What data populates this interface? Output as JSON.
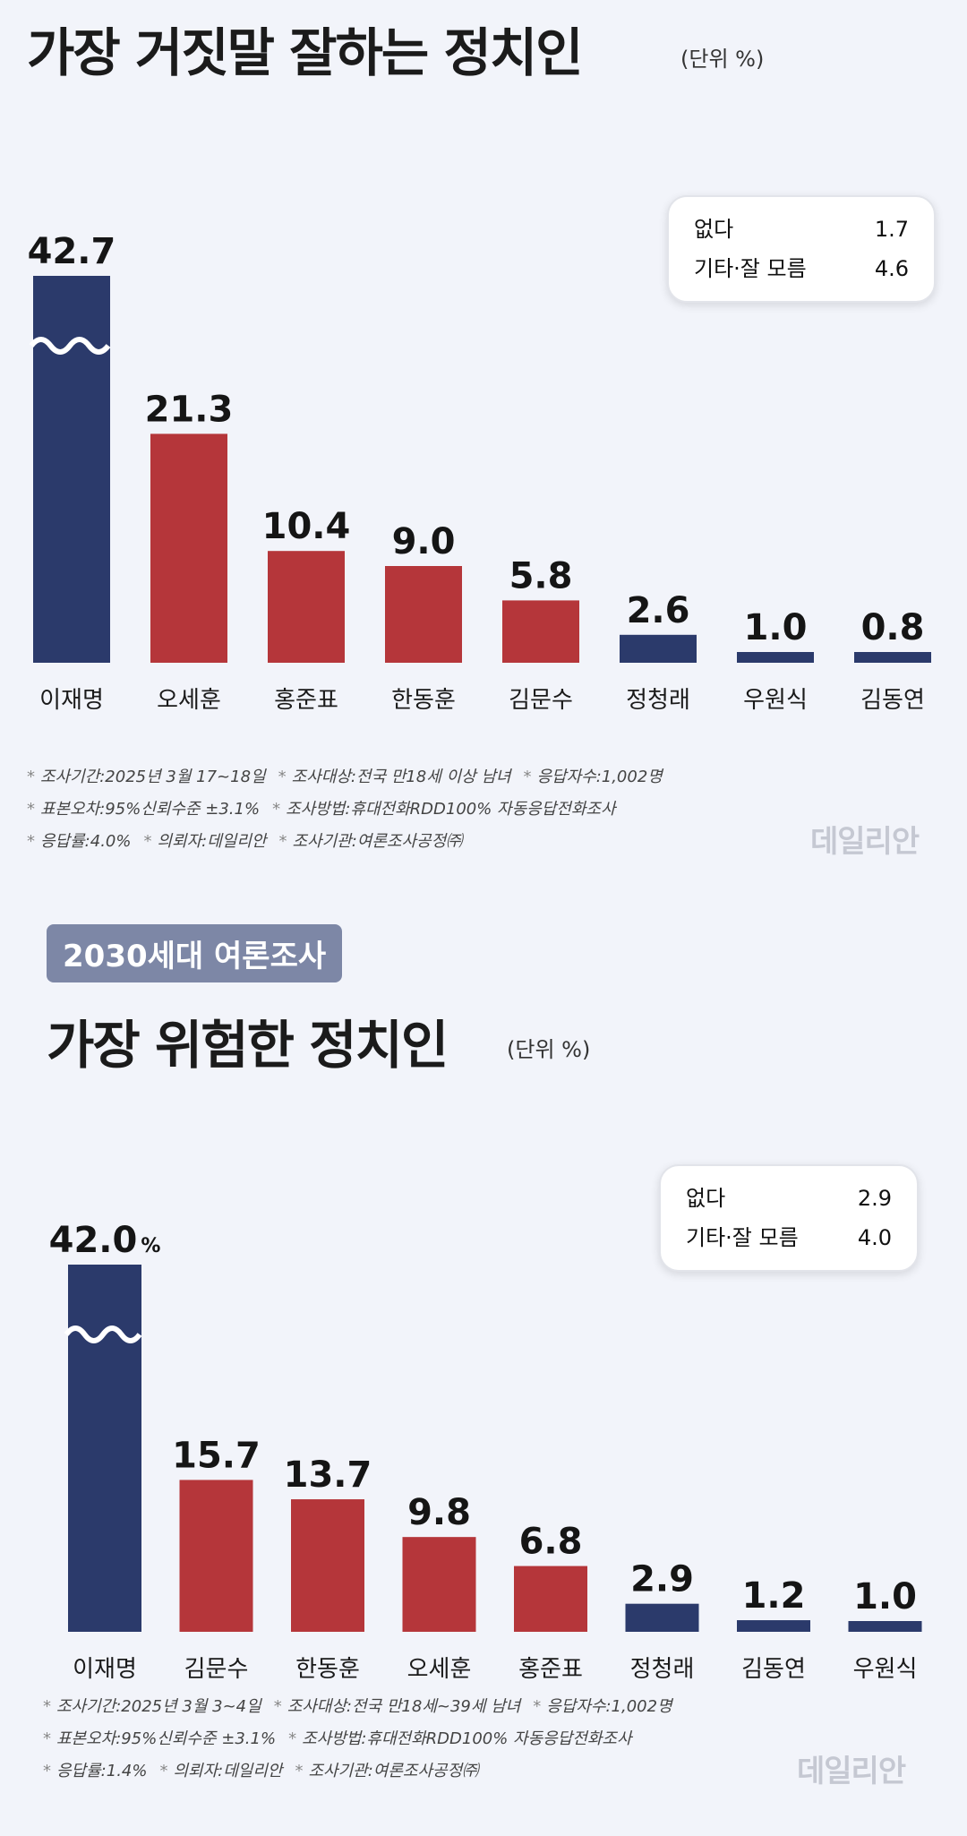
{
  "chart_data": [
    {
      "type": "bar",
      "title": "가장 거짓말 잘하는 정치인",
      "unit": "(단위 %)",
      "categories": [
        "이재명",
        "오세훈",
        "홍준표",
        "한동훈",
        "김문수",
        "정청래",
        "우원식",
        "김동연"
      ],
      "values": [
        42.7,
        21.3,
        10.4,
        9.0,
        5.8,
        2.6,
        1.0,
        0.8
      ],
      "labels": [
        "42.7",
        "21.3",
        "10.4",
        "9.0",
        "5.8",
        "2.6",
        "1.0",
        "0.8"
      ],
      "colors": [
        "#2b3a6b",
        "#b5363a",
        "#b5363a",
        "#b5363a",
        "#b5363a",
        "#2b3a6b",
        "#2b3a6b",
        "#2b3a6b"
      ],
      "axis_break_on_first_bar": true,
      "legend_box": [
        {
          "label": "없다",
          "value": "1.7"
        },
        {
          "label": "기타·잘 모름",
          "value": "4.6"
        }
      ],
      "notes": [
        [
          "조사기간:2025년 3월 17~18일",
          "조사대상:전국 만18세 이상 남녀",
          "응답자수:1,002명"
        ],
        [
          "표본오차:95%신뢰수준 ±3.1%",
          "조사방법:휴대전화RDD100% 자동응답전화조사"
        ],
        [
          "응답률:4.0%",
          "의뢰자:데일리안",
          "조사기관:여론조사공정㈜"
        ]
      ]
    },
    {
      "type": "bar",
      "badge": "2030세대 여론조사",
      "title": "가장 위험한 정치인",
      "unit": "(단위 %)",
      "categories": [
        "이재명",
        "김문수",
        "한동훈",
        "오세훈",
        "홍준표",
        "정청래",
        "김동연",
        "우원식"
      ],
      "values": [
        42.0,
        15.7,
        13.7,
        9.8,
        6.8,
        2.9,
        1.2,
        1.0
      ],
      "labels": [
        "42.0",
        "15.7",
        "13.7",
        "9.8",
        "6.8",
        "2.9",
        "1.2",
        "1.0"
      ],
      "first_label_suffix": "%",
      "colors": [
        "#2b3a6b",
        "#b5363a",
        "#b5363a",
        "#b5363a",
        "#b5363a",
        "#2b3a6b",
        "#2b3a6b",
        "#2b3a6b"
      ],
      "axis_break_on_first_bar": true,
      "legend_box": [
        {
          "label": "없다",
          "value": "2.9"
        },
        {
          "label": "기타·잘 모름",
          "value": "4.0"
        }
      ],
      "notes": [
        [
          "조사기간:2025년 3월 3~4일",
          "조사대상:전국 만18세~39세 남녀",
          "응답자수:1,002명"
        ],
        [
          "표본오차:95%신뢰수준 ±3.1%",
          "조사방법:휴대전화RDD100% 자동응답전화조사"
        ],
        [
          "응답률:1.4%",
          "의뢰자:데일리안",
          "조사기관:여론조사공정㈜"
        ]
      ]
    }
  ],
  "watermark": "데일리안"
}
